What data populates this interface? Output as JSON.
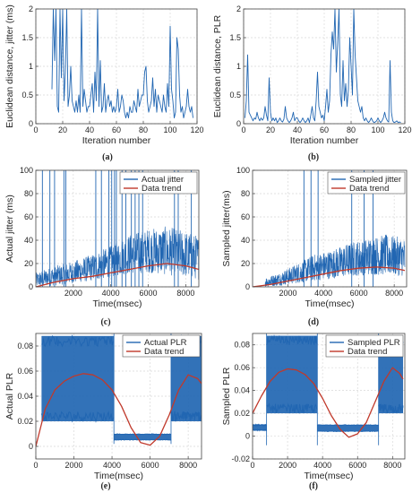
{
  "colors": {
    "blue": "#2166b2",
    "red": "#c0392b",
    "grid": "#d9d9d9",
    "axis": "#444444"
  },
  "chart_data": [
    {
      "panel": "(a)",
      "type": "line",
      "xlabel": "Iteration number",
      "ylabel": "Euclidean distance, jitter (ms)",
      "xlim": [
        0,
        120
      ],
      "ylim": [
        0,
        2
      ],
      "xticks": [
        0,
        20,
        40,
        60,
        80,
        100,
        120
      ],
      "yticks": [
        0,
        0.5,
        1,
        1.5,
        2
      ],
      "xtick_labels": [
        "0",
        "20",
        "40",
        "60",
        "80",
        "100",
        "120"
      ],
      "ytick_labels": [
        "0",
        "0.5",
        "1",
        "1.5",
        "2"
      ],
      "grid": true,
      "legend": null,
      "series": [
        {
          "color": "blue",
          "x": [
            12,
            13,
            14,
            15,
            16,
            17,
            18,
            19,
            20,
            21,
            22,
            23,
            24,
            25,
            26,
            27,
            28,
            29,
            30,
            31,
            32,
            33,
            34,
            35,
            36,
            37,
            38,
            39,
            40,
            41,
            42,
            43,
            44,
            45,
            46,
            47,
            48,
            49,
            50,
            51,
            52,
            53,
            54,
            55,
            56,
            57,
            58,
            59,
            60,
            61,
            62,
            63,
            64,
            65,
            66,
            67,
            68,
            69,
            70,
            71,
            72,
            73,
            74,
            75,
            76,
            77,
            78,
            79,
            80,
            81,
            82,
            83,
            84,
            85,
            86,
            87,
            88,
            89,
            90,
            91,
            92,
            93,
            94,
            95,
            96,
            97,
            98,
            99,
            100,
            101,
            102,
            103,
            104,
            105,
            106,
            107,
            108,
            109,
            110,
            111,
            112,
            113,
            114,
            115,
            116,
            117
          ],
          "y": [
            0.6,
            2.0,
            1.1,
            2.0,
            0.3,
            0.2,
            2.0,
            0.8,
            2.0,
            0.4,
            0.9,
            2.0,
            0.3,
            0.5,
            1.0,
            0.4,
            0.3,
            0.2,
            0.4,
            0.2,
            0.5,
            0.2,
            2.0,
            0.3,
            0.6,
            0.4,
            0.2,
            0.3,
            0.3,
            0.5,
            0.7,
            0.2,
            0.9,
            0.4,
            2.0,
            0.3,
            1.1,
            0.2,
            0.3,
            0.7,
            0.2,
            0.4,
            0.5,
            0.3,
            0.4,
            0.2,
            0.3,
            0.2,
            0.3,
            0.6,
            0.2,
            0.3,
            0.5,
            0.4,
            0.2,
            0.1,
            0.2,
            0.1,
            0.3,
            0.2,
            0.2,
            0.4,
            0.3,
            0.2,
            0.6,
            0.3,
            0.4,
            0.5,
            0.5,
            0.9,
            1.0,
            0.4,
            0.2,
            0.3,
            0.4,
            0.8,
            0.3,
            0.6,
            0.2,
            0.5,
            0.4,
            0.3,
            0.2,
            0.5,
            0.3,
            0.2,
            0.7,
            0.3,
            1.7,
            0.6,
            0.4,
            0.1,
            0.2,
            1.5,
            1.3,
            0.5,
            0.2,
            0.3,
            0.1,
            0.2,
            0.3,
            0.6,
            0.3,
            0.2,
            0.3,
            0.1
          ]
        }
      ]
    },
    {
      "panel": "(b)",
      "type": "line",
      "xlabel": "Iteration number",
      "ylabel": "Euclidean distance, PLR",
      "xlim": [
        0,
        120
      ],
      "ylim": [
        0,
        2
      ],
      "xticks": [
        0,
        20,
        40,
        60,
        80,
        100,
        120
      ],
      "yticks": [
        0,
        0.5,
        1,
        1.5,
        2
      ],
      "xtick_labels": [
        "0",
        "20",
        "40",
        "60",
        "80",
        "100",
        "120"
      ],
      "ytick_labels": [
        "0",
        "0.5",
        "1",
        "1.5",
        "2"
      ],
      "grid": true,
      "legend": null,
      "series": [
        {
          "color": "blue",
          "x": [
            1,
            2,
            3,
            4,
            5,
            6,
            7,
            8,
            9,
            10,
            11,
            12,
            13,
            14,
            15,
            16,
            17,
            18,
            19,
            20,
            21,
            22,
            23,
            24,
            25,
            26,
            27,
            28,
            29,
            30,
            31,
            32,
            33,
            34,
            35,
            36,
            37,
            38,
            39,
            40,
            41,
            42,
            43,
            44,
            45,
            46,
            47,
            48,
            49,
            50,
            51,
            52,
            53,
            54,
            55,
            56,
            57,
            58,
            59,
            60,
            61,
            62,
            63,
            64,
            65,
            66,
            67,
            68,
            69,
            70,
            71,
            72,
            73,
            74,
            75,
            76,
            77,
            78,
            79,
            80,
            81,
            82,
            83,
            84,
            85,
            86,
            87,
            88,
            89,
            90,
            91,
            92,
            93,
            94,
            95,
            96,
            97,
            98,
            99,
            100,
            101,
            102,
            103,
            104,
            105,
            106,
            107,
            108,
            109,
            110,
            111,
            112,
            113,
            114,
            115,
            116,
            117
          ],
          "y": [
            0.1,
            0.4,
            1.2,
            0.2,
            0.15,
            0.1,
            0.05,
            0.1,
            0.08,
            0.2,
            0.1,
            0.05,
            0.1,
            0.06,
            0.1,
            0.3,
            0.15,
            0.05,
            0.8,
            0.2,
            0.05,
            0.1,
            0.05,
            0.1,
            0.02,
            0.05,
            0.1,
            0.05,
            0.03,
            0.08,
            0.3,
            0.1,
            0.05,
            0.02,
            0.05,
            0.1,
            0.2,
            0.05,
            0.1,
            0.1,
            0.05,
            0.02,
            0.05,
            0.1,
            0.05,
            0.02,
            0.05,
            0.1,
            0.02,
            0.15,
            0.3,
            0.1,
            0.05,
            0.4,
            0.9,
            0.3,
            0.2,
            0.1,
            0.15,
            0.05,
            0.3,
            0.6,
            0.2,
            0.4,
            1.2,
            1.6,
            1.3,
            2.0,
            0.9,
            1.4,
            2.0,
            0.5,
            0.3,
            1.1,
            0.4,
            0.7,
            0.3,
            0.6,
            1.5,
            1.0,
            0.5,
            2.0,
            1.2,
            0.8,
            0.4,
            0.3,
            0.2,
            0.3,
            0.1,
            0.05,
            0.1,
            0.05,
            0.02,
            0.05,
            0.1,
            0.05,
            0.02,
            0.03,
            0.05,
            0.1,
            0.05,
            0.02,
            0.05,
            0.1,
            0.2,
            0.1,
            0.05,
            0.03,
            1.1,
            0.2,
            0.05,
            0.02,
            0.03,
            0.05,
            0.02,
            0.03,
            0.02
          ]
        }
      ]
    },
    {
      "panel": "(c)",
      "type": "line",
      "xlabel": "Time(msec)",
      "ylabel": "Actual jitter (ms)",
      "xlim": [
        0,
        8700
      ],
      "ylim": [
        0,
        100
      ],
      "xticks": [
        2000,
        4000,
        6000,
        8000
      ],
      "yticks": [
        0,
        20,
        40,
        60,
        80,
        100
      ],
      "xtick_labels": [
        "2000",
        "4000",
        "6000",
        "8000"
      ],
      "ytick_labels": [
        "0",
        "20",
        "40",
        "60",
        "80",
        "100"
      ],
      "grid": true,
      "legend": {
        "placement": "top-right"
      },
      "noise": {
        "description": "dense jitter samples",
        "envelope_x": [
          0,
          1000,
          2000,
          3000,
          4000,
          4500,
          5000,
          6000,
          7000,
          8000,
          8700
        ],
        "envelope_low": [
          0,
          1,
          3,
          5,
          8,
          10,
          11,
          12,
          10,
          8,
          6
        ],
        "envelope_high": [
          12,
          18,
          22,
          28,
          35,
          40,
          45,
          50,
          52,
          48,
          44
        ]
      },
      "spikes_x": [
        350,
        750,
        1000,
        1500,
        1600,
        3200,
        3500,
        3900,
        4050,
        4200,
        4300,
        4600,
        4800,
        5100,
        5300,
        5500,
        5700,
        7400,
        7600,
        8300
      ],
      "series": [
        {
          "name": "Actual jitter",
          "color": "blue",
          "kind": "noise"
        },
        {
          "name": "Data trend",
          "color": "red",
          "kind": "trend",
          "x": [
            0,
            1000,
            2000,
            3000,
            4000,
            5000,
            6000,
            7000,
            8000,
            8700
          ],
          "y": [
            0,
            4,
            7,
            9,
            12,
            15,
            18,
            20,
            18,
            15
          ]
        }
      ]
    },
    {
      "panel": "(d)",
      "type": "line",
      "xlabel": "Time(msec)",
      "ylabel": "Sampled jitter(ms)",
      "xlim": [
        0,
        8700
      ],
      "ylim": [
        0,
        100
      ],
      "xticks": [
        2000,
        4000,
        6000,
        8000
      ],
      "yticks": [
        0,
        20,
        40,
        60,
        80,
        100
      ],
      "xtick_labels": [
        "2000",
        "4000",
        "6000",
        "8000"
      ],
      "ytick_labels": [
        "0",
        "20",
        "40",
        "60",
        "80",
        "100"
      ],
      "grid": true,
      "legend": {
        "placement": "top-right"
      },
      "noise": {
        "description": "sampled jitter",
        "envelope_x": [
          700,
          1500,
          2500,
          3500,
          4500,
          5500,
          6500,
          7500,
          8600
        ],
        "envelope_low": [
          0,
          1,
          3,
          5,
          7,
          9,
          10,
          10,
          9
        ],
        "envelope_high": [
          8,
          12,
          20,
          28,
          32,
          38,
          42,
          45,
          42
        ]
      },
      "spikes_x": [
        2900,
        3300,
        3700,
        5600,
        6300,
        6800
      ],
      "series": [
        {
          "name": "Sampled jitter",
          "color": "blue",
          "kind": "noise"
        },
        {
          "name": "Data trend",
          "color": "red",
          "kind": "trend",
          "x": [
            0,
            1000,
            2000,
            3000,
            4000,
            5000,
            6000,
            7000,
            8000,
            8600
          ],
          "y": [
            0,
            2,
            5,
            8,
            11,
            14,
            16,
            17,
            16,
            14
          ]
        }
      ]
    },
    {
      "panel": "(e)",
      "type": "line",
      "xlabel": "Time(msec)",
      "ylabel": "Actual PLR",
      "xlim": [
        0,
        8700
      ],
      "ylim": [
        -0.01,
        0.09
      ],
      "xticks": [
        0,
        2000,
        4000,
        6000,
        8000
      ],
      "yticks": [
        0,
        0.02,
        0.04,
        0.06,
        0.08
      ],
      "xtick_labels": [
        "0",
        "2000",
        "4000",
        "6000",
        "8000"
      ],
      "ytick_labels": [
        "0",
        "0.02",
        "0.04",
        "0.06",
        "0.08"
      ],
      "grid": true,
      "legend": {
        "placement": "top-right"
      },
      "blocks": [
        {
          "x": [
            300,
            4100
          ],
          "low": 0.02,
          "high": 0.088
        },
        {
          "x": [
            4100,
            7100
          ],
          "low": 0.005,
          "high": 0.01
        },
        {
          "x": [
            7100,
            8700
          ],
          "low": 0.02,
          "high": 0.088
        }
      ],
      "series": [
        {
          "name": "Actual PLR",
          "color": "blue",
          "kind": "blocks"
        },
        {
          "name": "Data trend",
          "color": "red",
          "kind": "trend",
          "x": [
            0,
            500,
            1000,
            1500,
            2000,
            2500,
            3000,
            3500,
            4000,
            4500,
            5000,
            5500,
            6000,
            6500,
            7000,
            7500,
            8000,
            8500,
            8700
          ],
          "y": [
            0.0,
            0.03,
            0.045,
            0.052,
            0.056,
            0.058,
            0.057,
            0.053,
            0.045,
            0.032,
            0.015,
            0.003,
            0.001,
            0.008,
            0.025,
            0.045,
            0.057,
            0.054,
            0.05
          ]
        }
      ]
    },
    {
      "panel": "(f)",
      "type": "line",
      "xlabel": "Time(msec)",
      "ylabel": "Sampled PLR",
      "xlim": [
        0,
        8700
      ],
      "ylim": [
        -0.02,
        0.09
      ],
      "xticks": [
        0,
        2000,
        4000,
        6000,
        8000
      ],
      "yticks": [
        -0.02,
        0,
        0.02,
        0.04,
        0.06,
        0.08
      ],
      "xtick_labels": [
        "0",
        "2000",
        "4000",
        "6000",
        "8000"
      ],
      "ytick_labels": [
        "-0.02",
        "0",
        "0.02",
        "0.04",
        "0.06",
        "0.08"
      ],
      "grid": true,
      "legend": {
        "placement": "top-right"
      },
      "blocks": [
        {
          "x": [
            0,
            800
          ],
          "low": 0.005,
          "high": 0.01
        },
        {
          "x": [
            800,
            3700
          ],
          "low": 0.02,
          "high": 0.088
        },
        {
          "x": [
            3700,
            7200
          ],
          "low": 0.004,
          "high": 0.01
        },
        {
          "x": [
            7200,
            8600
          ],
          "low": 0.02,
          "high": 0.088
        }
      ],
      "series": [
        {
          "name": "Sampled PLR",
          "color": "blue",
          "kind": "blocks"
        },
        {
          "name": "Data trend",
          "color": "red",
          "kind": "trend",
          "x": [
            0,
            500,
            1000,
            1500,
            2000,
            2500,
            3000,
            3500,
            4000,
            4500,
            5000,
            5500,
            6000,
            6500,
            7000,
            7500,
            8000,
            8400,
            8600
          ],
          "y": [
            0.02,
            0.035,
            0.048,
            0.056,
            0.059,
            0.058,
            0.054,
            0.046,
            0.033,
            0.018,
            0.006,
            -0.001,
            0.002,
            0.012,
            0.03,
            0.048,
            0.06,
            0.055,
            0.05
          ]
        }
      ]
    }
  ]
}
